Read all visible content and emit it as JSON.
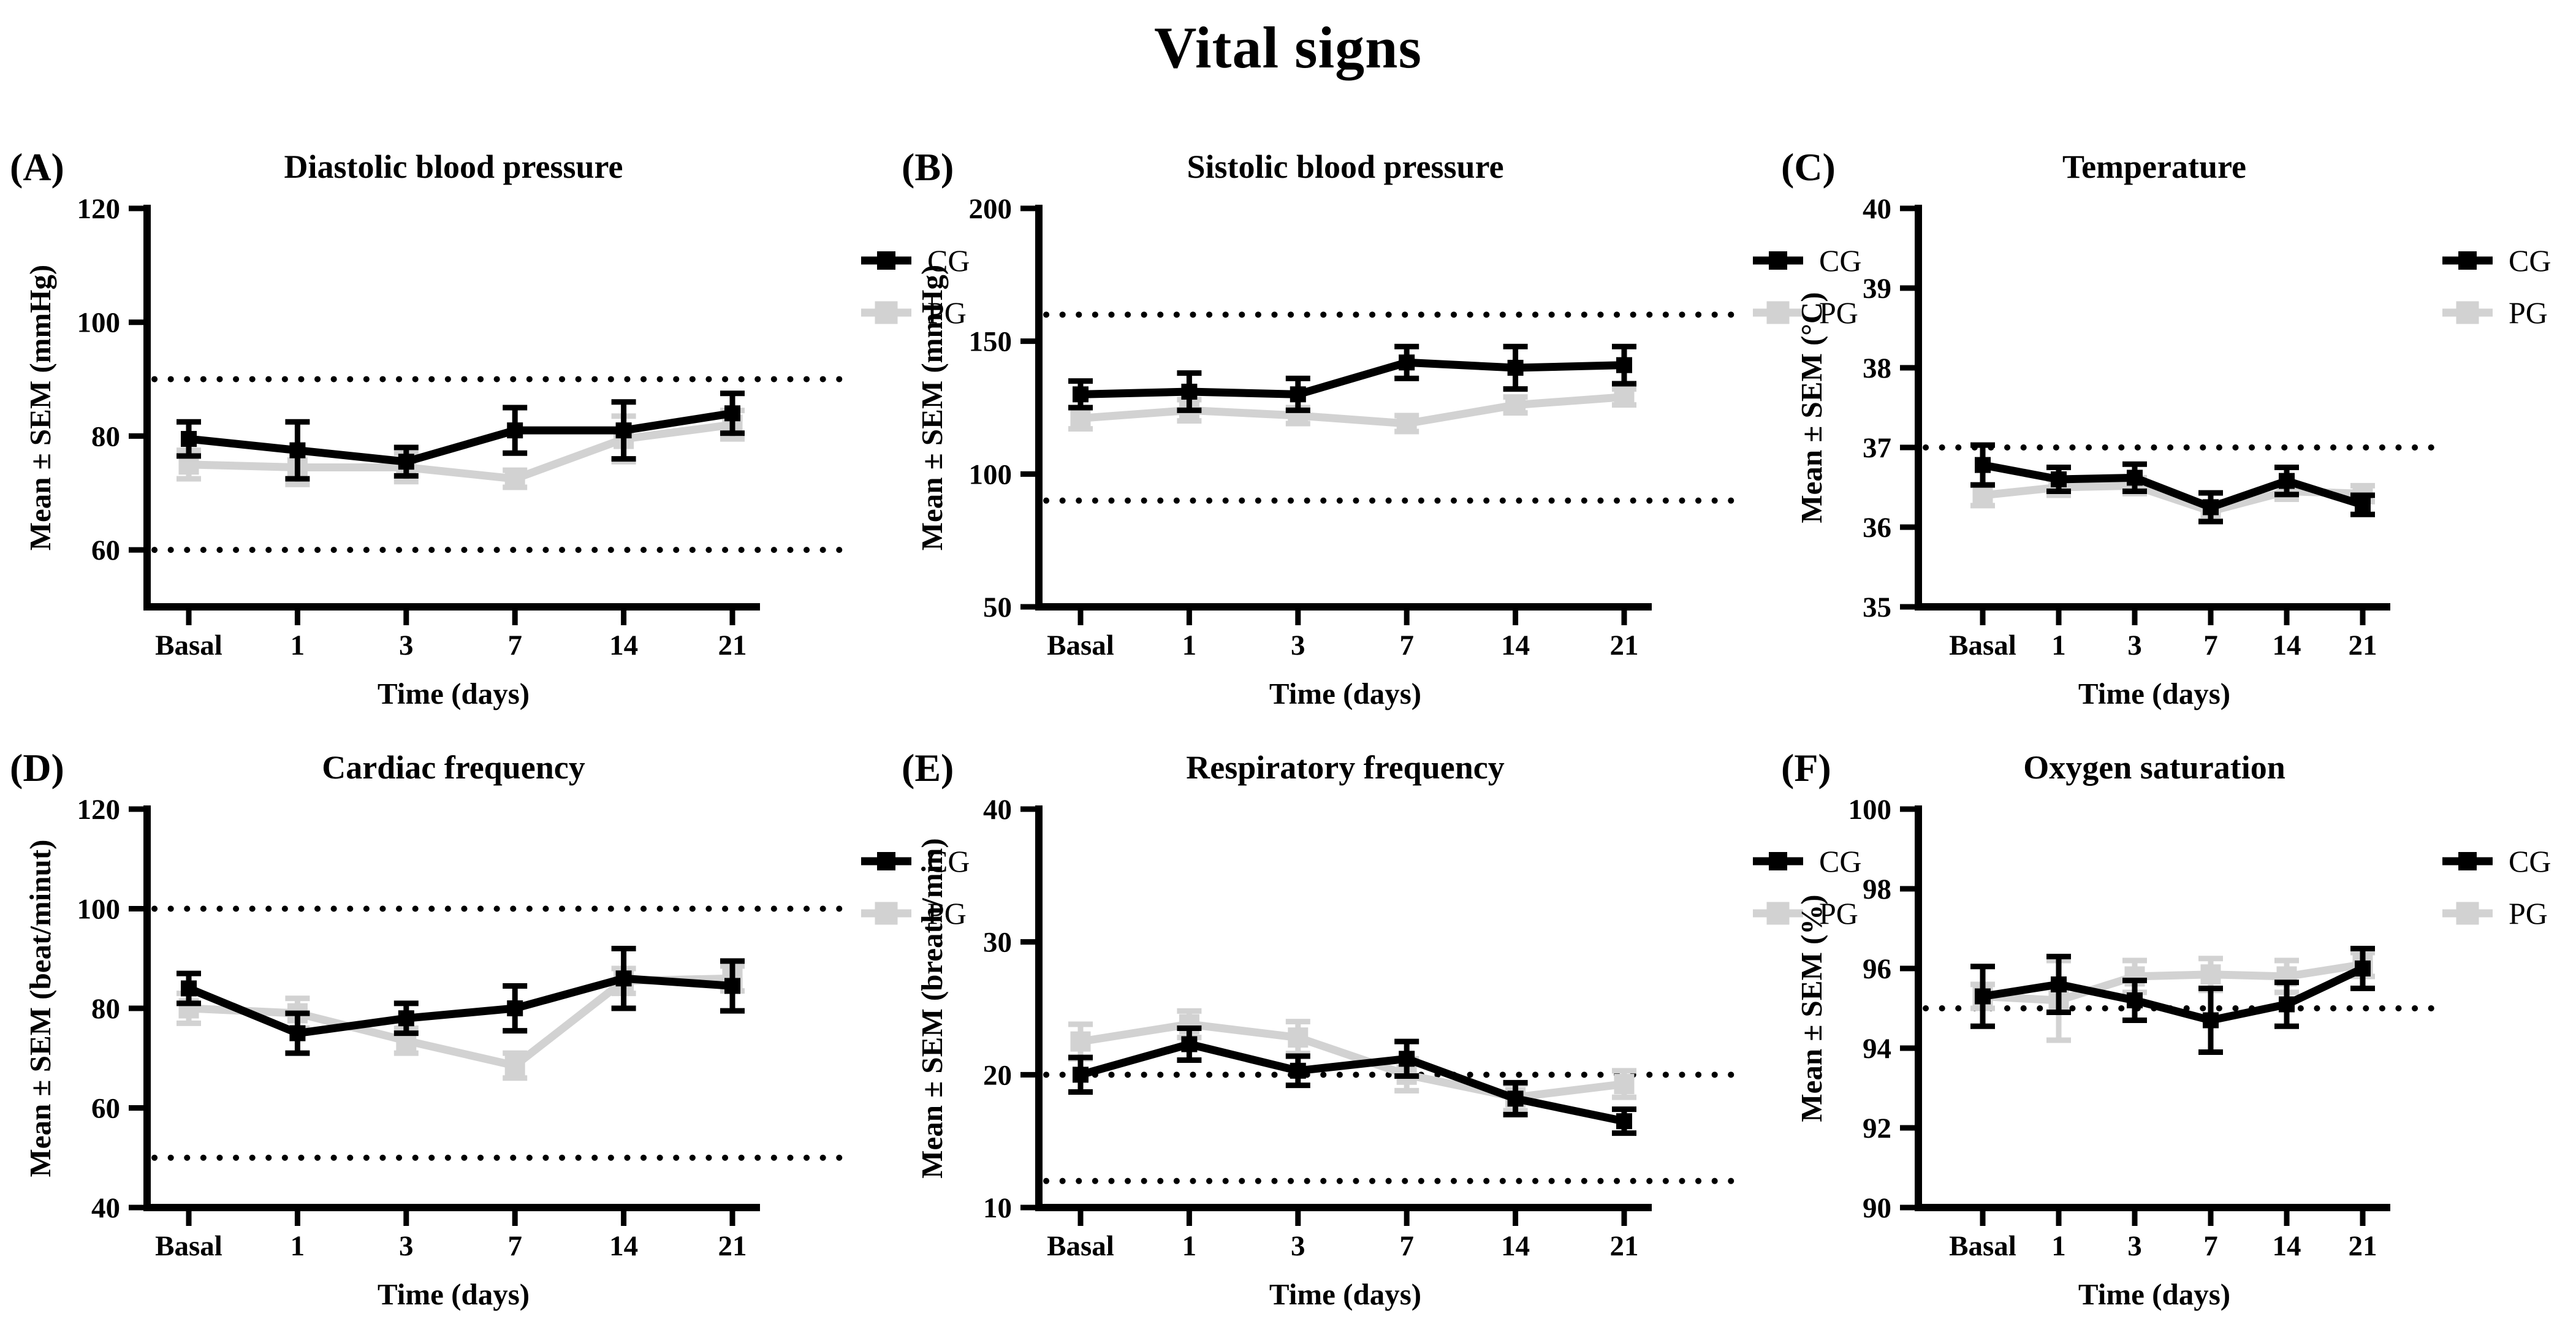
{
  "figure": {
    "title": "Vital signs",
    "xlabel": "Time (days)",
    "categories": [
      "Basal",
      "1",
      "3",
      "7",
      "14",
      "21"
    ],
    "legend": [
      {
        "name": "CG",
        "color": "#000000"
      },
      {
        "name": "PG",
        "color": "#d2d2d2"
      }
    ],
    "colors": {
      "cg": "#000000",
      "pg": "#d2d2d2",
      "background": "#ffffff",
      "text": "#000000"
    }
  },
  "chart_data": [
    {
      "id": "A",
      "type": "line",
      "letter": "(A)",
      "title": "Diastolic blood pressure",
      "ylabel": "Mean ± SEM (mmHg)",
      "xlabel": "Time (days)",
      "categories": [
        "Basal",
        "1",
        "3",
        "7",
        "14",
        "21"
      ],
      "ylim": [
        50,
        120
      ],
      "yticks": [
        60,
        80,
        100,
        120
      ],
      "reference_lines": [
        90,
        60
      ],
      "grid": false,
      "legend_position": "right-top",
      "series": [
        {
          "name": "CG",
          "color": "#000000",
          "values": [
            79.5,
            77.5,
            75.5,
            81,
            81,
            84
          ],
          "sem": [
            3,
            5,
            2.5,
            4,
            5,
            3.5
          ]
        },
        {
          "name": "PG",
          "color": "#d2d2d2",
          "values": [
            75,
            74.5,
            74.5,
            72.5,
            79.5,
            82
          ],
          "sem": [
            2.5,
            3,
            2.5,
            1.5,
            4,
            2.5
          ]
        }
      ]
    },
    {
      "id": "B",
      "type": "line",
      "letter": "(B)",
      "title": "Sistolic blood pressure",
      "ylabel": "Mean ± SEM (mmHg)",
      "xlabel": "Time (days)",
      "categories": [
        "Basal",
        "1",
        "3",
        "7",
        "14",
        "21"
      ],
      "ylim": [
        50,
        200
      ],
      "yticks": [
        50,
        100,
        150,
        200
      ],
      "reference_lines": [
        160,
        90
      ],
      "grid": false,
      "legend_position": "right-top",
      "series": [
        {
          "name": "CG",
          "color": "#000000",
          "values": [
            130,
            131,
            130,
            142,
            140,
            141
          ],
          "sem": [
            5,
            7,
            6,
            6,
            8,
            7
          ]
        },
        {
          "name": "PG",
          "color": "#d2d2d2",
          "values": [
            121,
            124,
            122,
            119,
            126,
            129
          ],
          "sem": [
            4,
            4,
            3,
            3,
            3,
            3
          ]
        }
      ]
    },
    {
      "id": "C",
      "type": "line",
      "letter": "(C)",
      "title": "Temperature",
      "ylabel": "Mean ± SEM (°C)",
      "xlabel": "Time (days)",
      "categories": [
        "Basal",
        "1",
        "3",
        "7",
        "14",
        "21"
      ],
      "ylim": [
        35,
        40
      ],
      "yticks": [
        35,
        36,
        37,
        38,
        39,
        40
      ],
      "reference_lines": [
        37
      ],
      "grid": false,
      "legend_position": "right-top",
      "series": [
        {
          "name": "CG",
          "color": "#000000",
          "values": [
            36.78,
            36.6,
            36.62,
            36.25,
            36.58,
            36.28
          ],
          "sem": [
            0.25,
            0.15,
            0.17,
            0.18,
            0.17,
            0.12
          ]
        },
        {
          "name": "PG",
          "color": "#d2d2d2",
          "values": [
            36.4,
            36.5,
            36.52,
            36.2,
            36.45,
            36.42
          ],
          "sem": [
            0.13,
            0.1,
            0.1,
            0.12,
            0.1,
            0.1
          ]
        }
      ]
    },
    {
      "id": "D",
      "type": "line",
      "letter": "(D)",
      "title": "Cardiac frequency",
      "ylabel": "Mean ± SEM (beat/minut)",
      "xlabel": "Time (days)",
      "categories": [
        "Basal",
        "1",
        "3",
        "7",
        "14",
        "21"
      ],
      "ylim": [
        40,
        120
      ],
      "yticks": [
        40,
        60,
        80,
        100,
        120
      ],
      "reference_lines": [
        100,
        50
      ],
      "grid": false,
      "legend_position": "right-top",
      "series": [
        {
          "name": "CG",
          "color": "#000000",
          "values": [
            84,
            75,
            78,
            80,
            86,
            84.5
          ],
          "sem": [
            3,
            4,
            3,
            4.5,
            6,
            5
          ]
        },
        {
          "name": "PG",
          "color": "#d2d2d2",
          "values": [
            80,
            79,
            73.5,
            68.5,
            85.5,
            86
          ],
          "sem": [
            3,
            3,
            2.5,
            2.5,
            2.5,
            2.5
          ]
        }
      ]
    },
    {
      "id": "E",
      "type": "line",
      "letter": "(E)",
      "title": "Respiratory frequency",
      "ylabel": "Mean ± SEM (breath/min)",
      "xlabel": "Time (days)",
      "categories": [
        "Basal",
        "1",
        "3",
        "7",
        "14",
        "21"
      ],
      "ylim": [
        10,
        40
      ],
      "yticks": [
        10,
        20,
        30,
        40
      ],
      "reference_lines": [
        20,
        12
      ],
      "grid": false,
      "legend_position": "right-top",
      "series": [
        {
          "name": "CG",
          "color": "#000000",
          "values": [
            20,
            22.3,
            20.3,
            21.2,
            18.2,
            16.5
          ],
          "sem": [
            1.3,
            1.2,
            1.1,
            1.3,
            1.2,
            0.9
          ]
        },
        {
          "name": "PG",
          "color": "#d2d2d2",
          "values": [
            22.5,
            23.8,
            22.8,
            20,
            18.3,
            19.3
          ],
          "sem": [
            1.3,
            1,
            1.2,
            1.2,
            1,
            1
          ]
        }
      ]
    },
    {
      "id": "F",
      "type": "line",
      "letter": "(F)",
      "title": "Oxygen saturation",
      "ylabel": "Mean ± SEM (%)",
      "xlabel": "Time (days)",
      "categories": [
        "Basal",
        "1",
        "3",
        "7",
        "14",
        "21"
      ],
      "ylim": [
        90,
        100
      ],
      "yticks": [
        90,
        92,
        94,
        96,
        98,
        100
      ],
      "reference_lines": [
        95
      ],
      "grid": false,
      "legend_position": "right-top",
      "series": [
        {
          "name": "CG",
          "color": "#000000",
          "values": [
            95.3,
            95.6,
            95.2,
            94.7,
            95.1,
            96
          ],
          "sem": [
            0.75,
            0.7,
            0.5,
            0.8,
            0.55,
            0.5
          ]
        },
        {
          "name": "PG",
          "color": "#d2d2d2",
          "values": [
            95.3,
            95.2,
            95.8,
            95.85,
            95.8,
            96.1
          ],
          "sem": [
            0.3,
            1,
            0.4,
            0.4,
            0.4,
            0.3
          ]
        }
      ]
    }
  ]
}
